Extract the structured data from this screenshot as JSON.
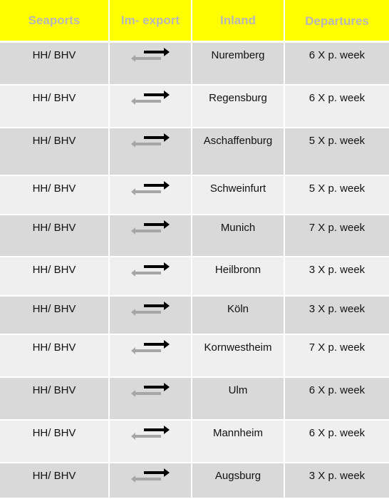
{
  "headers": {
    "seaports": "Seaports",
    "im_export": "Im- export",
    "inland": "Inland",
    "departures": "Departures"
  },
  "colors": {
    "header_bg": "#ffff00",
    "header_text": "#b7b7b7",
    "row_dark": "#d9d9d9",
    "row_light": "#efefef",
    "arrow_export": "#000000",
    "arrow_import": "#a6a6a6"
  },
  "rows": [
    {
      "seaport": "HH/ BHV",
      "icon": "import-export-arrows-icon",
      "inland": "Nuremberg",
      "departures": "6 X p. week"
    },
    {
      "seaport": "HH/ BHV",
      "icon": "import-export-arrows-icon",
      "inland": "Regensburg",
      "departures": "6 X p. week"
    },
    {
      "seaport": "HH/ BHV",
      "icon": "import-export-arrows-icon",
      "inland": "Aschaffenburg",
      "departures": "5 X p. week"
    },
    {
      "seaport": "HH/ BHV",
      "icon": "import-export-arrows-icon",
      "inland": "Schweinfurt",
      "departures": "5 X p. week"
    },
    {
      "seaport": "HH/ BHV",
      "icon": "import-export-arrows-icon",
      "inland": "Munich",
      "departures": "7 X p. week"
    },
    {
      "seaport": "HH/ BHV",
      "icon": "import-export-arrows-icon",
      "inland": "Heilbronn",
      "departures": "3 X p. week"
    },
    {
      "seaport": "HH/ BHV",
      "icon": "import-export-arrows-icon",
      "inland": "Köln",
      "departures": "3 X p. week"
    },
    {
      "seaport": "HH/ BHV",
      "icon": "import-export-arrows-icon",
      "inland": "Kornwestheim",
      "departures": "7 X p. week"
    },
    {
      "seaport": "HH/ BHV",
      "icon": "import-export-arrows-icon",
      "inland": "Ulm",
      "departures": "6 X p. week"
    },
    {
      "seaport": "HH/ BHV",
      "icon": "import-export-arrows-icon",
      "inland": "Mannheim",
      "departures": "6 X p. week"
    },
    {
      "seaport": "HH/ BHV",
      "icon": "import-export-arrows-icon",
      "inland": "Augsburg",
      "departures": "3 X p. week"
    }
  ]
}
